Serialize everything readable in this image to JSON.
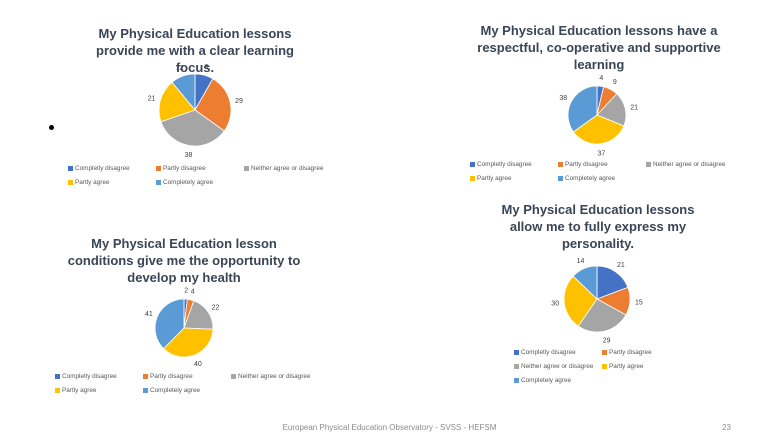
{
  "colors": {
    "completely_disagree": "#4472c4",
    "partly_disagree": "#ed7d31",
    "neither": "#a5a5a5",
    "partly_agree": "#ffc000",
    "completely_agree": "#5b9bd5"
  },
  "chart_data": [
    {
      "type": "pie",
      "title": "My Physical Education lessons provide me with a clear learning focus.",
      "categories": [
        "Completly disagree",
        "Partly disagree",
        "Neither agree or disagree",
        "Partly agree",
        "Completely agree"
      ],
      "values": [
        9,
        29,
        38,
        21,
        12
      ],
      "legend": "bottom"
    },
    {
      "type": "pie",
      "title": "My Physical Education lessons have a respectful, co-operative and supportive learning",
      "categories": [
        "Completly disagree",
        "Partly disagree",
        "Neither agree or disagree",
        "Partly agree",
        "Completely agree"
      ],
      "values": [
        4,
        9,
        21,
        37,
        38
      ],
      "legend": "bottom"
    },
    {
      "type": "pie",
      "title": "My Physical Education lesson conditions give me the opportunity to develop my health",
      "categories": [
        "Completly disagree",
        "Partly disagree",
        "Neither agree or disagree",
        "Partly agree",
        "Completely agree"
      ],
      "values": [
        2,
        4,
        22,
        40,
        41
      ],
      "legend": "bottom"
    },
    {
      "type": "pie",
      "title": "My Physical Education lessons allow me to fully express my personality.",
      "categories": [
        "Completly disagree",
        "Partly disagree",
        "Neither agree or disagree",
        "Partly agree",
        "Completely agree"
      ],
      "values": [
        21,
        15,
        29,
        30,
        14
      ],
      "legend": "bottom"
    }
  ],
  "footer": {
    "text": "European Physical Education Observatory -  SVSS - HEFSM",
    "page": "23"
  }
}
